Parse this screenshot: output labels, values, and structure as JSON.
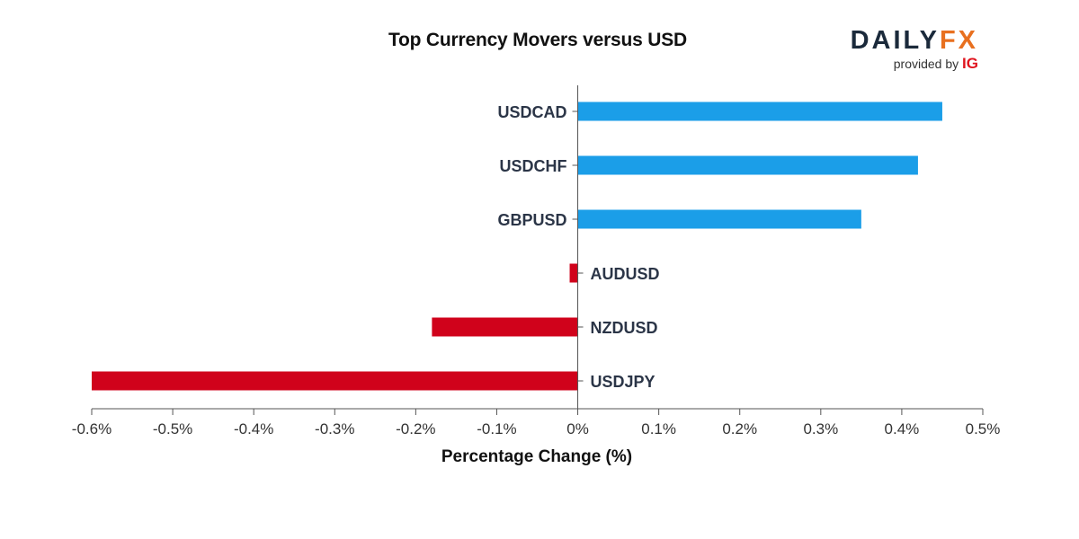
{
  "logo": {
    "brand_left": "DAILY",
    "brand_right": "FX",
    "provided_by": "provided by",
    "provider": "IG"
  },
  "colors": {
    "positive": "#1b9ee8",
    "negative": "#d0021b",
    "axis": "#555555",
    "label": "#2b3547"
  },
  "chart_data": {
    "type": "bar",
    "orientation": "horizontal",
    "title": "Top Currency Movers versus USD",
    "xlabel": "Percentage Change (%)",
    "ylabel": "",
    "categories": [
      "USDCAD",
      "USDCHF",
      "GBPUSD",
      "AUDUSD",
      "NZDUSD",
      "USDJPY"
    ],
    "values": [
      0.45,
      0.42,
      0.35,
      -0.01,
      -0.18,
      -0.6
    ],
    "xlim": [
      -0.6,
      0.5
    ],
    "xticks": [
      -0.6,
      -0.5,
      -0.4,
      -0.3,
      -0.2,
      -0.1,
      0,
      0.1,
      0.2,
      0.3,
      0.4,
      0.5
    ],
    "xtick_labels": [
      "-0.6%",
      "-0.5%",
      "-0.4%",
      "-0.3%",
      "-0.2%",
      "-0.1%",
      "0%",
      "0.1%",
      "0.2%",
      "0.3%",
      "0.4%",
      "0.5%"
    ],
    "grid": false,
    "legend": "none"
  }
}
